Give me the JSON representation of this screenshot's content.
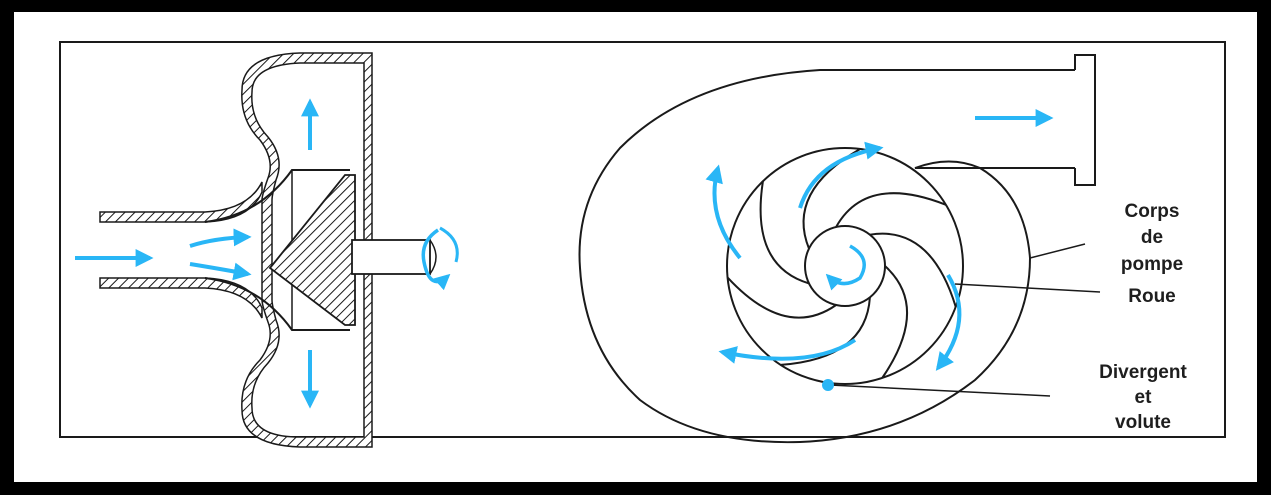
{
  "diagram": {
    "labels": {
      "corps_line1": "Corps",
      "corps_line2": "de",
      "corps_line3": "pompe",
      "roue": "Roue",
      "divergent_line1": "Divergent",
      "divergent_line2": "et",
      "divergent_line3": "volute"
    },
    "colors": {
      "flow_arrow": "#29b6f6",
      "outline": "#1a1a1a",
      "frame": "#000000",
      "background": "#ffffff"
    }
  }
}
